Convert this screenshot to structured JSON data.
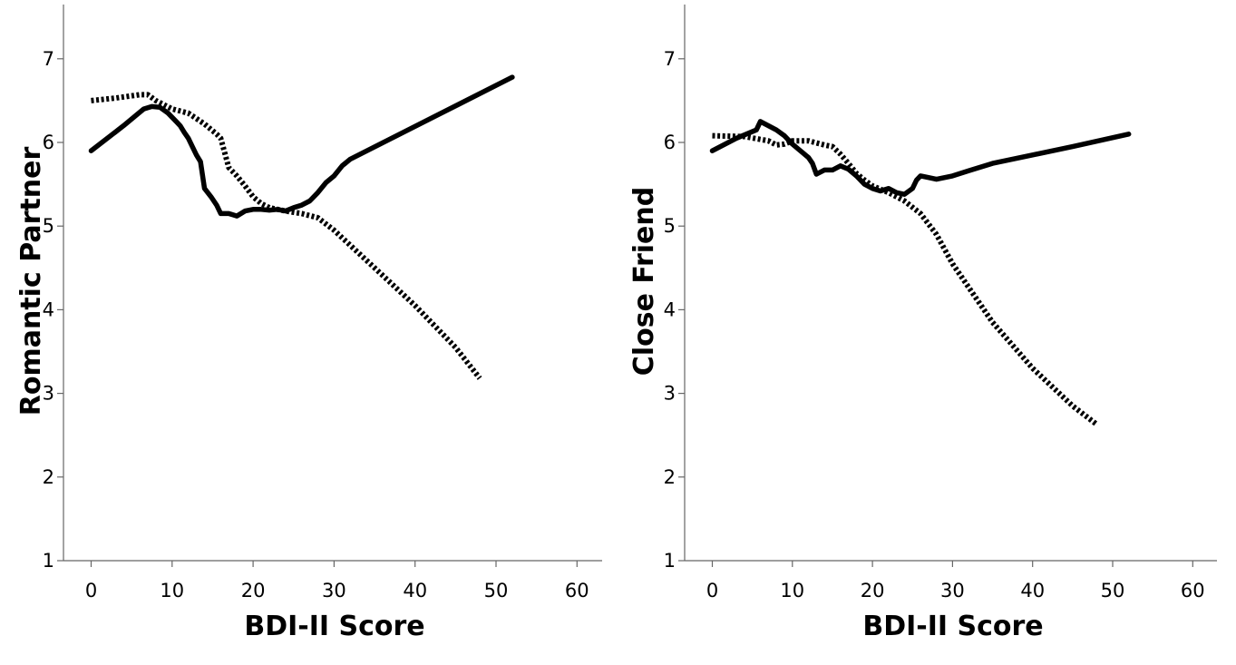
{
  "chart_data": [
    {
      "type": "line",
      "xlabel": "BDI-II Score",
      "ylabel": "Romantic Partner",
      "xlim": [
        -3,
        63
      ],
      "ylim": [
        1,
        7.6
      ],
      "xticks": [
        0,
        10,
        20,
        30,
        40,
        50,
        60
      ],
      "yticks": [
        1,
        2,
        3,
        4,
        5,
        6,
        7
      ],
      "grid": false,
      "legend": "none",
      "series": [
        {
          "style": "solid",
          "points": [
            [
              0,
              5.9
            ],
            [
              4,
              6.2
            ],
            [
              6.5,
              6.4
            ],
            [
              7.5,
              6.43
            ],
            [
              8.5,
              6.42
            ],
            [
              9.5,
              6.35
            ],
            [
              10.5,
              6.25
            ],
            [
              11,
              6.2
            ],
            [
              11.5,
              6.12
            ],
            [
              12,
              6.05
            ],
            [
              12.5,
              5.95
            ],
            [
              13,
              5.85
            ],
            [
              13.5,
              5.77
            ],
            [
              14,
              5.45
            ],
            [
              14.8,
              5.35
            ],
            [
              15.5,
              5.25
            ],
            [
              16,
              5.15
            ],
            [
              17,
              5.15
            ],
            [
              18,
              5.12
            ],
            [
              19,
              5.18
            ],
            [
              20,
              5.2
            ],
            [
              21,
              5.2
            ],
            [
              22,
              5.19
            ],
            [
              23,
              5.2
            ],
            [
              24,
              5.18
            ],
            [
              25,
              5.22
            ],
            [
              26,
              5.25
            ],
            [
              27,
              5.3
            ],
            [
              28,
              5.4
            ],
            [
              29,
              5.52
            ],
            [
              30,
              5.6
            ],
            [
              31,
              5.72
            ],
            [
              32,
              5.8
            ],
            [
              52,
              6.78
            ]
          ]
        },
        {
          "style": "dotted",
          "points": [
            [
              0,
              6.5
            ],
            [
              3,
              6.53
            ],
            [
              6,
              6.57
            ],
            [
              7,
              6.57
            ],
            [
              8,
              6.5
            ],
            [
              10,
              6.4
            ],
            [
              12,
              6.35
            ],
            [
              14,
              6.22
            ],
            [
              15.5,
              6.1
            ],
            [
              16,
              6.05
            ],
            [
              17,
              5.7
            ],
            [
              18,
              5.6
            ],
            [
              19,
              5.48
            ],
            [
              20,
              5.35
            ],
            [
              21,
              5.27
            ],
            [
              22,
              5.22
            ],
            [
              24,
              5.18
            ],
            [
              26,
              5.15
            ],
            [
              28,
              5.1
            ],
            [
              30,
              4.95
            ],
            [
              35,
              4.5
            ],
            [
              40,
              4.05
            ],
            [
              45,
              3.55
            ],
            [
              48,
              3.18
            ]
          ]
        }
      ]
    },
    {
      "type": "line",
      "xlabel": "BDI-II Score",
      "ylabel": "Close Friend",
      "xlim": [
        -3,
        63
      ],
      "ylim": [
        1,
        7.6
      ],
      "xticks": [
        0,
        10,
        20,
        30,
        40,
        50,
        60
      ],
      "yticks": [
        1,
        2,
        3,
        4,
        5,
        6,
        7
      ],
      "grid": false,
      "legend": "none",
      "series": [
        {
          "style": "solid",
          "points": [
            [
              0,
              5.9
            ],
            [
              3,
              6.05
            ],
            [
              5.5,
              6.15
            ],
            [
              6,
              6.25
            ],
            [
              7,
              6.2
            ],
            [
              8,
              6.15
            ],
            [
              9,
              6.08
            ],
            [
              10,
              5.98
            ],
            [
              11,
              5.9
            ],
            [
              12,
              5.82
            ],
            [
              12.5,
              5.75
            ],
            [
              13,
              5.62
            ],
            [
              14,
              5.67
            ],
            [
              15,
              5.67
            ],
            [
              16,
              5.72
            ],
            [
              17,
              5.68
            ],
            [
              18,
              5.6
            ],
            [
              19,
              5.5
            ],
            [
              20,
              5.45
            ],
            [
              21,
              5.42
            ],
            [
              22,
              5.45
            ],
            [
              23,
              5.4
            ],
            [
              24,
              5.38
            ],
            [
              25,
              5.45
            ],
            [
              25.5,
              5.55
            ],
            [
              26,
              5.6
            ],
            [
              27,
              5.58
            ],
            [
              28,
              5.56
            ],
            [
              30,
              5.6
            ],
            [
              32,
              5.66
            ],
            [
              35,
              5.75
            ],
            [
              40,
              5.85
            ],
            [
              45,
              5.95
            ],
            [
              52,
              6.1
            ]
          ]
        },
        {
          "style": "dotted",
          "points": [
            [
              0,
              6.08
            ],
            [
              4,
              6.07
            ],
            [
              7,
              6.02
            ],
            [
              8,
              5.97
            ],
            [
              9,
              5.98
            ],
            [
              10,
              6.02
            ],
            [
              12,
              6.02
            ],
            [
              14,
              5.97
            ],
            [
              15,
              5.95
            ],
            [
              16,
              5.86
            ],
            [
              17,
              5.75
            ],
            [
              18,
              5.63
            ],
            [
              19,
              5.55
            ],
            [
              20,
              5.48
            ],
            [
              22,
              5.4
            ],
            [
              24,
              5.3
            ],
            [
              26,
              5.15
            ],
            [
              28,
              4.9
            ],
            [
              30,
              4.55
            ],
            [
              35,
              3.85
            ],
            [
              40,
              3.3
            ],
            [
              45,
              2.85
            ],
            [
              48,
              2.63
            ]
          ]
        }
      ]
    }
  ]
}
